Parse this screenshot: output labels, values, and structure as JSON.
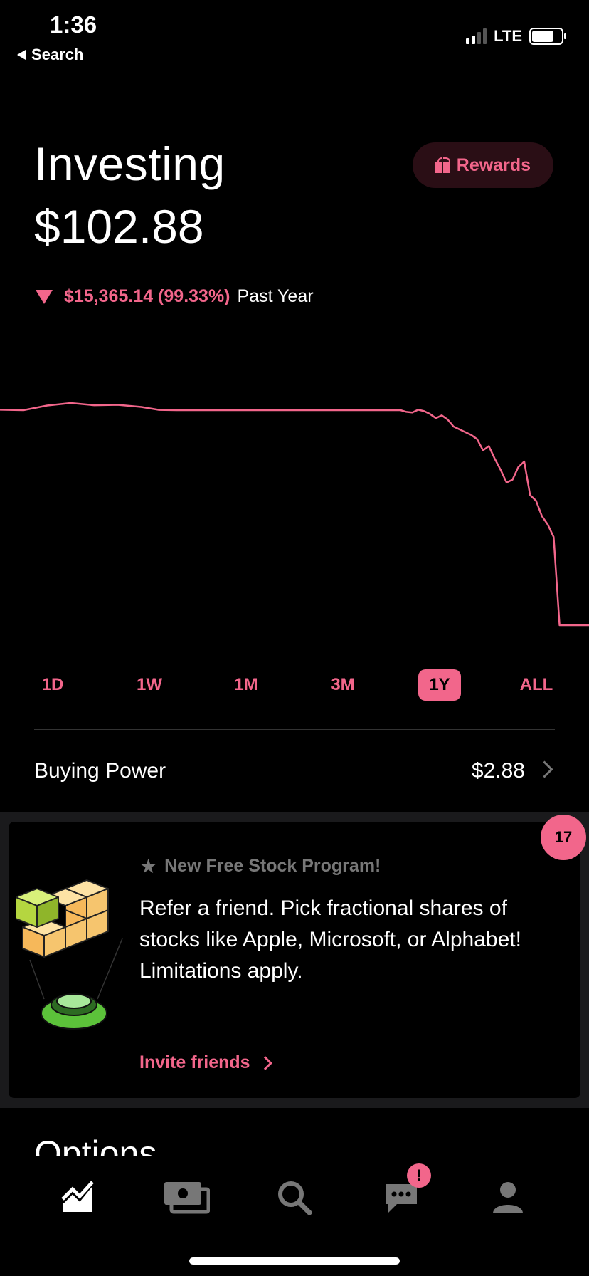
{
  "status_bar": {
    "time": "1:36",
    "back_label": "Search",
    "network": "LTE"
  },
  "header": {
    "title": "Investing",
    "portfolio_value": "$102.88",
    "rewards_label": "Rewards"
  },
  "performance": {
    "change": "$15,365.14 (99.33%)",
    "period_label": "Past Year",
    "direction": "down"
  },
  "chart_data": {
    "type": "line",
    "title": "",
    "xlabel": "",
    "ylabel": "",
    "color": "#f2668b",
    "ylim": [
      0,
      17000
    ],
    "x": [
      0,
      4,
      8,
      12,
      14,
      16,
      20,
      24,
      27,
      30,
      32,
      35,
      38,
      40,
      43,
      46,
      50,
      55,
      60,
      65,
      68,
      69,
      70,
      71,
      72,
      73,
      74,
      75,
      76,
      77,
      78,
      79,
      80,
      81,
      82,
      83,
      84,
      85,
      86,
      87,
      88,
      89,
      90,
      91,
      92,
      93,
      94,
      95,
      96,
      97,
      98,
      100
    ],
    "y": [
      15500,
      15470,
      15800,
      15980,
      15900,
      15820,
      15850,
      15700,
      15490,
      15470,
      15470,
      15470,
      15470,
      15470,
      15470,
      15470,
      15470,
      15470,
      15470,
      15470,
      15470,
      15350,
      15300,
      15500,
      15400,
      15200,
      14900,
      15100,
      14800,
      14300,
      14100,
      13900,
      13700,
      13400,
      12600,
      12900,
      12000,
      11200,
      10300,
      10500,
      11400,
      11800,
      9400,
      9000,
      7900,
      7300,
      6400,
      103,
      103,
      103,
      103,
      103
    ]
  },
  "ranges": [
    "1D",
    "1W",
    "1M",
    "3M",
    "1Y",
    "ALL"
  ],
  "active_range": "1Y",
  "buying_power": {
    "label": "Buying Power",
    "value": "$2.88"
  },
  "promo": {
    "badge_count": "17",
    "heading": "New Free Stock Program!",
    "body": "Refer a friend. Pick fractional shares of stocks like Apple, Microsoft, or Alphabet! Limitations apply.",
    "cta": "Invite friends"
  },
  "next_section_title": "Options",
  "tabbar": {
    "items": [
      "chart-icon",
      "cash-icon",
      "search-icon",
      "messages-icon",
      "account-icon"
    ],
    "notification_badge": "!"
  },
  "colors": {
    "accent": "#f2668b",
    "background": "#000000",
    "rewards_bg": "#2a0e15"
  }
}
